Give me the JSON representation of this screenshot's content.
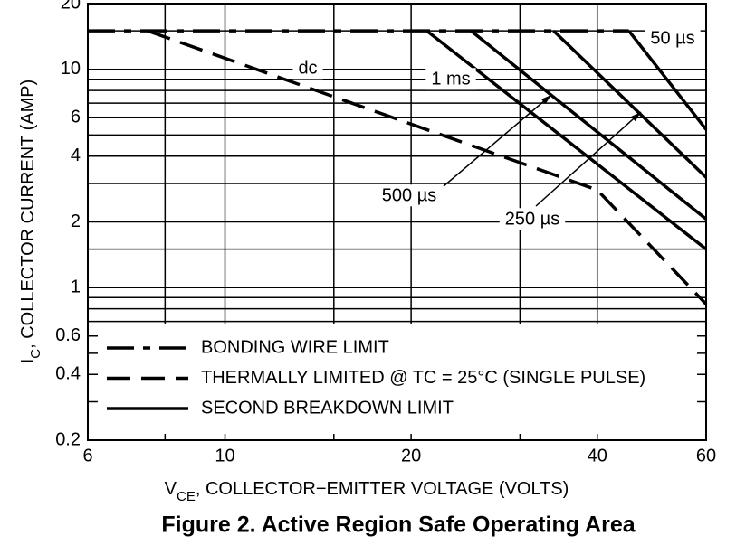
{
  "chart_data": {
    "type": "line",
    "title": "Figure 2. Active Region Safe Operating Area",
    "xlabel": [
      "V",
      "CE",
      ", COLLECTOR−EMITTER VOLTAGE (VOLTS)"
    ],
    "ylabel": [
      "I",
      "C",
      ", COLLECTOR CURRENT (AMP)"
    ],
    "xlog": true,
    "ylog": true,
    "grid": true,
    "xlim": [
      6,
      60
    ],
    "xticks": [
      6,
      10,
      20,
      40,
      60
    ],
    "xminor": [
      8,
      15,
      30
    ],
    "ylim": [
      0.2,
      20
    ],
    "yticks": [
      0.2,
      0.4,
      0.6,
      1,
      2,
      4,
      6,
      10,
      20
    ],
    "yminor": [
      0.3,
      0.5,
      0.7,
      0.8,
      0.9,
      1.5,
      3,
      5,
      7,
      8,
      9,
      15
    ],
    "legend": "bottom",
    "series": [
      {
        "name": "BONDING WIRE LIMIT",
        "color": "#000000",
        "style": "dash-dot",
        "x": [
          6,
          45
        ],
        "values": [
          15,
          15
        ]
      },
      {
        "name": "THERMALLY LIMITED @ TC = 25°C (SINGLE PULSE)",
        "color": "#000000",
        "style": "dash",
        "x": [
          7.5,
          40,
          60
        ],
        "values": [
          15,
          2.8,
          0.84
        ]
      },
      {
        "name": "SECOND BREAKDOWN LIMIT",
        "color": "#000000",
        "style": "solid",
        "x": [
          21.2,
          60,
          null,
          25,
          60,
          null,
          34,
          60,
          null,
          45,
          60
        ],
        "values": [
          15,
          1.5,
          null,
          15,
          2.06,
          null,
          15,
          3.2,
          null,
          15,
          5.3
        ]
      }
    ],
    "annotations": [
      "dc",
      "1 ms",
      "500 µs",
      "250 µs",
      "50 µs"
    ]
  }
}
